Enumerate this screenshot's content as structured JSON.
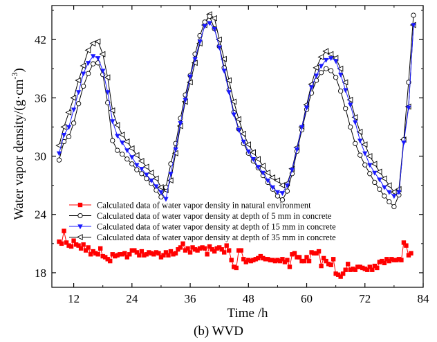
{
  "caption": "(b) WVD",
  "chart_data": {
    "type": "line",
    "xlabel": "Time /h",
    "ylabel_main": "Water vapor density/(g·cm",
    "ylabel_exp": "-3",
    "ylabel_close": ")",
    "xlim": [
      7.5,
      84
    ],
    "ylim": [
      16.5,
      45.5
    ],
    "xticks": [
      12,
      24,
      36,
      48,
      60,
      72,
      84
    ],
    "yticks": [
      18,
      24,
      30,
      36,
      42
    ],
    "legend_position": "lower-left",
    "series": [
      {
        "name": "Calculated data of water vapor density in natural environment",
        "marker": "square-filled",
        "color": "#ff0000",
        "x": [
          9,
          9.5,
          10,
          10.5,
          11,
          11.5,
          12,
          12.5,
          13,
          13.5,
          14,
          14.5,
          15,
          15.5,
          16,
          16.5,
          17,
          17.5,
          18,
          18.5,
          19,
          19.5,
          20,
          20.5,
          21,
          21.5,
          22,
          22.5,
          23,
          23.5,
          24,
          24.5,
          25,
          25.5,
          26,
          26.5,
          27,
          27.5,
          28,
          28.5,
          29,
          29.5,
          30,
          30.5,
          31,
          31.5,
          32,
          32.5,
          33,
          33.5,
          34,
          34.5,
          35,
          35.5,
          36,
          36.5,
          37,
          37.5,
          38,
          38.5,
          39,
          39.5,
          40,
          40.5,
          41,
          41.5,
          42,
          42.5,
          43,
          43.5,
          44,
          44.5,
          45,
          45.5,
          46,
          46.5,
          47,
          47.5,
          48,
          48.5,
          49,
          49.5,
          50,
          50.5,
          51,
          51.5,
          52,
          52.5,
          53,
          53.5,
          54,
          54.5,
          55,
          55.5,
          56,
          56.5,
          57,
          57.5,
          58,
          58.5,
          59,
          59.5,
          60,
          60.5,
          61,
          61.5,
          62,
          62.5,
          63,
          63.5,
          64,
          64.5,
          65,
          65.5,
          66,
          66.5,
          67,
          67.5,
          68,
          68.5,
          69,
          69.5,
          70,
          70.5,
          71,
          71.5,
          72,
          72.5,
          73,
          73.5,
          74,
          74.5,
          75,
          75.5,
          76,
          76.5,
          77,
          77.5,
          78,
          78.5,
          79,
          79.5,
          80,
          80.5,
          81,
          81.5
        ],
        "y": [
          21.2,
          21.0,
          22.3,
          21.1,
          20.8,
          20.7,
          21.3,
          20.9,
          20.8,
          20.5,
          20.9,
          20.3,
          20.6,
          19.9,
          20.2,
          20.0,
          19.9,
          20.5,
          19.7,
          19.6,
          19.4,
          19.2,
          19.9,
          19.7,
          19.8,
          19.9,
          19.9,
          20.0,
          19.6,
          19.9,
          20.3,
          20.3,
          20.1,
          19.8,
          20.2,
          19.8,
          19.9,
          20.1,
          20.0,
          19.9,
          20.1,
          20.0,
          19.6,
          19.8,
          20.1,
          19.8,
          20.2,
          19.9,
          20.0,
          20.4,
          20.6,
          21.0,
          20.3,
          20.5,
          20.1,
          20.6,
          20.4,
          20.3,
          20.5,
          20.6,
          20.5,
          19.9,
          20.7,
          20.4,
          20.2,
          20.5,
          20.6,
          20.4,
          20.1,
          20.8,
          20.3,
          19.3,
          18.6,
          18.5,
          20.3,
          20.3,
          19.4,
          19.1,
          19.3,
          19.2,
          19.3,
          19.4,
          19.5,
          19.7,
          19.5,
          19.4,
          19.4,
          19.3,
          19.3,
          19.2,
          19.3,
          19.2,
          19.4,
          19.1,
          19.3,
          18.6,
          19.9,
          20.0,
          19.6,
          19.6,
          19.2,
          19.2,
          19.6,
          19.2,
          20.1,
          20.0,
          20.0,
          20.2,
          18.7,
          19.5,
          19.2,
          18.9,
          18.8,
          19.4,
          17.9,
          17.8,
          17.6,
          17.9,
          18.3,
          18.9,
          18.3,
          18.4,
          18.3,
          18.6,
          18.6,
          18.5,
          18.4,
          18.3,
          18.6,
          18.3,
          18.7,
          18.5,
          19.1,
          19.2,
          19.0,
          19.4,
          19.2,
          19.4,
          19.3,
          19.3,
          19.4,
          19.3,
          21.1,
          20.8,
          19.8,
          20.0
        ]
      },
      {
        "name": "Calculated data of water vapor density at depth of 5 mm in concrete",
        "marker": "circle-open",
        "color": "#000000",
        "x": [
          9,
          10,
          11,
          12,
          13,
          14,
          15,
          16,
          17,
          18,
          19,
          20,
          21,
          22,
          23,
          24,
          25,
          26,
          27,
          28,
          29,
          30,
          31,
          32,
          33,
          34,
          35,
          36,
          37,
          38,
          39,
          40,
          41,
          42,
          43,
          44,
          45,
          46,
          47,
          48,
          49,
          50,
          51,
          52,
          53,
          54,
          55,
          56,
          57,
          58,
          59,
          60,
          61,
          62,
          63,
          64,
          65,
          66,
          67,
          68,
          69,
          70,
          71,
          72,
          73,
          74,
          75,
          76,
          77,
          78,
          79,
          80,
          81,
          82
        ],
        "y": [
          29.6,
          31.5,
          32.0,
          33.4,
          35.4,
          37.2,
          38.5,
          39.5,
          39.6,
          38.4,
          35.5,
          31.6,
          30.6,
          30.2,
          29.7,
          29.2,
          28.6,
          28.2,
          27.7,
          27.2,
          26.5,
          25.8,
          26.8,
          29.2,
          31.3,
          33.9,
          36.3,
          38.3,
          40.5,
          42.4,
          43.8,
          44.4,
          43.1,
          41.3,
          39.1,
          36.8,
          34.5,
          32.8,
          31.3,
          30.3,
          29.5,
          28.8,
          28.0,
          27.3,
          26.6,
          25.9,
          25.5,
          26.4,
          28.2,
          30.5,
          32.7,
          34.8,
          36.5,
          37.8,
          38.6,
          39.0,
          38.8,
          38.1,
          36.7,
          34.9,
          33.0,
          31.3,
          30.1,
          29.1,
          28.2,
          27.3,
          26.6,
          25.9,
          25.3,
          24.8,
          26.0,
          31.7,
          37.6,
          44.5
        ]
      },
      {
        "name": "Calculated data of water vapor density at depth of 15 mm in concrete",
        "marker": "triangle-down-filled",
        "color": "#1a1aff",
        "x": [
          9,
          10,
          11,
          12,
          13,
          14,
          15,
          16,
          17,
          18,
          19,
          20,
          21,
          22,
          23,
          24,
          25,
          26,
          27,
          28,
          29,
          30,
          31,
          32,
          33,
          34,
          35,
          36,
          37,
          38,
          39,
          40,
          41,
          42,
          43,
          44,
          45,
          46,
          47,
          48,
          49,
          50,
          51,
          52,
          53,
          54,
          55,
          56,
          57,
          58,
          59,
          60,
          61,
          62,
          63,
          64,
          65,
          66,
          67,
          68,
          69,
          70,
          71,
          72,
          73,
          74,
          75,
          76,
          77,
          78,
          79,
          80,
          81,
          82
        ],
        "y": [
          30.3,
          32.2,
          33.0,
          34.8,
          36.6,
          38.5,
          39.6,
          40.3,
          40.1,
          38.8,
          36.6,
          33.6,
          32.1,
          31.4,
          30.6,
          29.9,
          29.1,
          28.7,
          28.1,
          27.5,
          26.9,
          26.3,
          25.6,
          28.2,
          30.7,
          33.4,
          35.8,
          38.2,
          40.0,
          41.8,
          43.4,
          43.7,
          43.1,
          41.2,
          38.8,
          36.6,
          34.3,
          32.7,
          31.5,
          30.5,
          29.7,
          28.9,
          28.3,
          27.5,
          26.8,
          26.3,
          26.2,
          27.0,
          28.6,
          30.7,
          33.0,
          35.0,
          37.1,
          38.3,
          39.3,
          39.9,
          40.1,
          39.8,
          38.4,
          36.8,
          35.3,
          33.5,
          31.6,
          30.3,
          29.1,
          28.3,
          27.6,
          26.8,
          26.3,
          25.9,
          26.3,
          31.4,
          35.0,
          43.5
        ]
      },
      {
        "name": "Calculated data of water vapor density at depth of 35 mm in concrete",
        "marker": "triangle-left-open",
        "color": "#000000",
        "x": [
          9,
          10,
          11,
          12,
          13,
          14,
          15,
          16,
          17,
          18,
          19,
          20,
          21,
          22,
          23,
          24,
          25,
          26,
          27,
          28,
          29,
          30,
          31,
          32,
          33,
          34,
          35,
          36,
          37,
          38,
          39,
          40,
          41,
          42,
          43,
          44,
          45,
          46,
          47,
          48,
          49,
          50,
          51,
          52,
          53,
          54,
          55,
          56,
          57,
          58,
          59,
          60,
          61,
          62,
          63,
          64,
          65,
          66,
          67,
          68,
          69,
          70,
          71,
          72,
          73,
          74,
          75,
          76,
          77,
          78,
          79,
          80,
          81,
          82
        ],
        "y": [
          31.1,
          33.0,
          34.5,
          36.0,
          37.8,
          39.3,
          40.9,
          41.6,
          41.8,
          40.5,
          38.1,
          34.7,
          33.2,
          32.2,
          31.5,
          30.8,
          30.1,
          29.5,
          28.9,
          28.3,
          27.7,
          26.8,
          26.5,
          27.5,
          30.3,
          33.1,
          35.6,
          37.6,
          39.6,
          41.6,
          43.5,
          44.6,
          44.2,
          42.0,
          40.0,
          37.8,
          35.6,
          33.8,
          32.3,
          31.2,
          30.4,
          29.7,
          29.0,
          28.3,
          27.8,
          27.5,
          27.0,
          27.2,
          28.7,
          30.9,
          33.0,
          35.3,
          37.4,
          39.1,
          40.2,
          40.8,
          40.5,
          40.1,
          39.0,
          37.6,
          35.8,
          34.0,
          32.5,
          31.2,
          30.0,
          29.2,
          28.4,
          27.7,
          27.0,
          26.3,
          26.6,
          31.7,
          35.1,
          43.5
        ]
      }
    ]
  }
}
